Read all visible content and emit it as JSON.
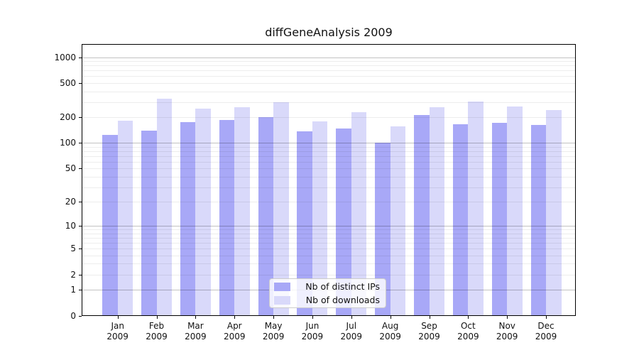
{
  "chart_data": {
    "type": "bar",
    "title": "diffGeneAnalysis 2009",
    "categories": [
      "Jan",
      "Feb",
      "Mar",
      "Apr",
      "May",
      "Jun",
      "Jul",
      "Aug",
      "Sep",
      "Oct",
      "Nov",
      "Dec"
    ],
    "x_tick_second_line": "2009",
    "series": [
      {
        "name": "Nb of distinct IPs",
        "color": "#a8a8f7",
        "values": [
          125,
          140,
          177,
          184,
          200,
          138,
          148,
          100,
          212,
          165,
          171,
          164
        ]
      },
      {
        "name": "Nb of downloads",
        "color": "#d9d9fa",
        "values": [
          181,
          330,
          253,
          261,
          301,
          179,
          231,
          156,
          261,
          306,
          268,
          243
        ]
      }
    ],
    "yscale": "log10(1+x)",
    "ytick_values": [
      1000,
      500,
      200,
      100,
      50,
      20,
      10,
      5,
      2,
      1,
      0
    ],
    "ytick_labels": [
      "1000",
      "500",
      "200",
      "100",
      "50",
      "20",
      "10",
      "5",
      "2",
      "1",
      "0"
    ],
    "ylim": [
      0,
      1400
    ],
    "grid": {
      "orientation": "horizontal",
      "major_values": [
        1,
        10,
        100,
        1000
      ],
      "minor_values": [
        2,
        3,
        4,
        5,
        6,
        7,
        8,
        9,
        20,
        30,
        40,
        50,
        60,
        70,
        80,
        90,
        200,
        300,
        400,
        500,
        600,
        700,
        800,
        900
      ]
    },
    "legend": {
      "position": "bottom-center"
    }
  }
}
